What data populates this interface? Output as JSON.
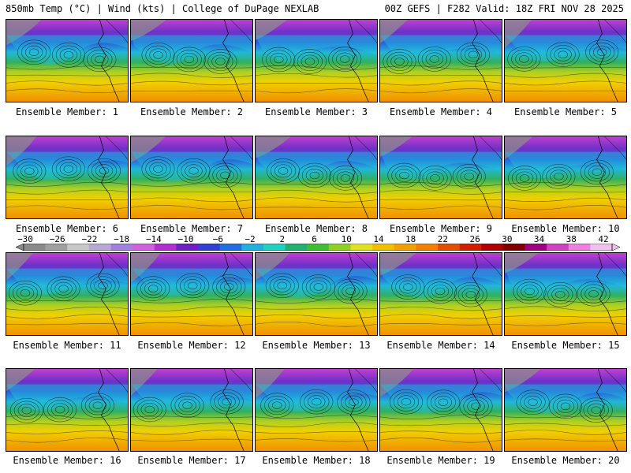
{
  "header": {
    "left": "850mb Temp (°C) | Wind (kts) | College of DuPage NEXLAB",
    "right": "00Z GEFS | F282 Valid: 18Z FRI NOV 28 2025"
  },
  "members": [
    "Ensemble Member: 1",
    "Ensemble Member: 2",
    "Ensemble Member: 3",
    "Ensemble Member: 4",
    "Ensemble Member: 5",
    "Ensemble Member: 6",
    "Ensemble Member: 7",
    "Ensemble Member: 8",
    "Ensemble Member: 9",
    "Ensemble Member: 10",
    "Ensemble Member: 11",
    "Ensemble Member: 12",
    "Ensemble Member: 13",
    "Ensemble Member: 14",
    "Ensemble Member: 15",
    "Ensemble Member: 16",
    "Ensemble Member: 17",
    "Ensemble Member: 18",
    "Ensemble Member: 19",
    "Ensemble Member: 20"
  ],
  "colorbar": {
    "tick_labels": [
      "−30",
      "−26",
      "−22",
      "−18",
      "−14",
      "−10",
      "−6",
      "−2",
      "2",
      "6",
      "10",
      "14",
      "18",
      "22",
      "26",
      "30",
      "34",
      "38",
      "42"
    ],
    "colors": [
      "#8a8a8a",
      "#a0a0a0",
      "#c8c8c8",
      "#b8a8d8",
      "#a080e0",
      "#d060e0",
      "#b030d0",
      "#7020c0",
      "#3040d0",
      "#2070e0",
      "#20b0e0",
      "#20d0c0",
      "#20b070",
      "#40c030",
      "#90d020",
      "#e0e020",
      "#f0c000",
      "#f0a000",
      "#f08000",
      "#e05000",
      "#d02000",
      "#b00000",
      "#800000",
      "#a00080",
      "#d040c0",
      "#f080e0",
      "#f0c0f0"
    ]
  }
}
